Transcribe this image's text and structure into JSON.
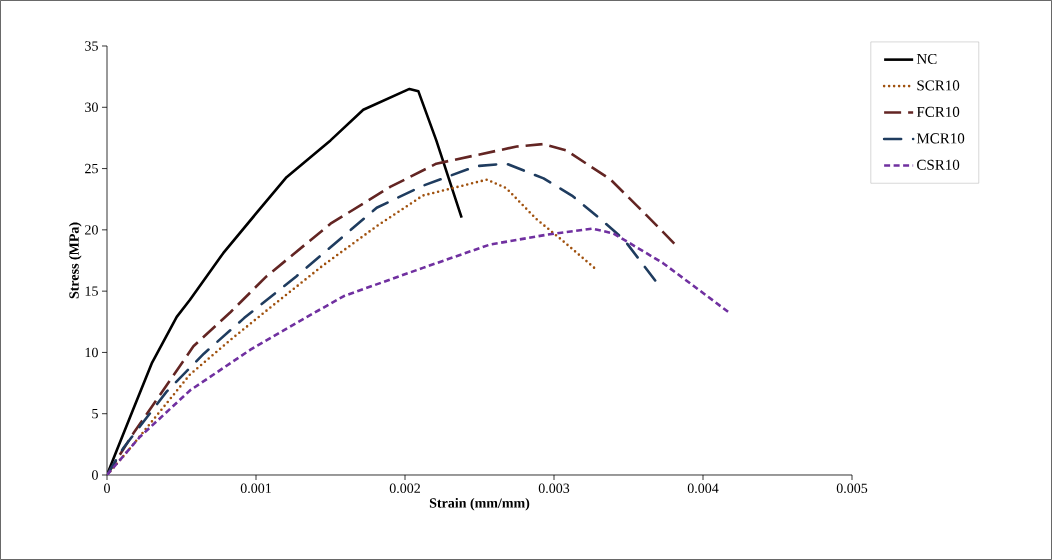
{
  "chart_data": {
    "type": "line",
    "xlabel": "Strain (mm/mm)",
    "ylabel": "Stress (MPa)",
    "xlim": [
      0,
      0.005
    ],
    "ylim": [
      0,
      35
    ],
    "xticks": [
      0,
      0.001,
      0.002,
      0.003,
      0.004,
      0.005
    ],
    "yticks": [
      0,
      5,
      10,
      15,
      20,
      25,
      30,
      35
    ],
    "grid": false,
    "legend": "right",
    "marker": "none",
    "series": [
      {
        "name": "NC",
        "color": "#000000",
        "line_style": "solid",
        "x": [
          0,
          6.5e-05,
          0.000174,
          0.0003,
          0.000468,
          0.000557,
          0.00078,
          0.001005,
          0.001205,
          0.0015,
          0.00172,
          0.00203,
          0.00209,
          0.00221,
          0.00238
        ],
        "values": [
          0,
          2.0,
          5.3,
          9.1,
          12.9,
          14.3,
          18.1,
          21.4,
          24.3,
          27.3,
          29.8,
          31.5,
          31.3,
          27.3,
          21.0
        ]
      },
      {
        "name": "SCR10",
        "color": "#a0510e",
        "line_style": "dotted",
        "x": [
          0,
          0.000143,
          0.00033,
          0.000557,
          0.000826,
          0.00112,
          0.00145,
          0.00181,
          0.00212,
          0.00255,
          0.00268,
          0.00288,
          0.00305,
          0.00328
        ],
        "values": [
          0,
          2.0,
          4.8,
          8.2,
          11.0,
          13.9,
          17.1,
          20.3,
          22.8,
          24.1,
          23.4,
          20.9,
          19.2,
          16.8
        ]
      },
      {
        "name": "FCR10",
        "color": "#632523",
        "line_style": "long dashed",
        "x": [
          0,
          0.000177,
          0.000376,
          0.00058,
          0.00083,
          0.00107,
          0.0015,
          0.0019,
          0.00221,
          0.00275,
          0.00293,
          0.00308,
          0.00338,
          0.00362,
          0.00383
        ],
        "values": [
          0,
          3.4,
          6.9,
          10.5,
          13.3,
          16.2,
          20.5,
          23.5,
          25.4,
          26.8,
          27.0,
          26.5,
          24.1,
          21.2,
          18.6
        ]
      },
      {
        "name": "MCR10",
        "color": "#1f3c5f",
        "line_style": "dash dot",
        "x": [
          0,
          0.00011,
          0.0004,
          0.00065,
          0.00092,
          0.00127,
          0.00181,
          0.00212,
          0.00248,
          0.00268,
          0.00293,
          0.00312,
          0.00331,
          0.00347,
          0.00369
        ],
        "values": [
          0,
          2.2,
          6.8,
          9.9,
          12.8,
          16.2,
          21.8,
          23.6,
          25.2,
          25.4,
          24.2,
          22.8,
          20.9,
          19.2,
          15.7
        ]
      },
      {
        "name": "CSR10",
        "color": "#7030a0",
        "line_style": "dashed",
        "x": [
          0,
          0.00022,
          0.000557,
          0.00096,
          0.00127,
          0.00159,
          0.00212,
          0.00257,
          0.00295,
          0.00326,
          0.0034,
          0.00373,
          0.00394,
          0.00417
        ],
        "values": [
          0,
          3.1,
          6.9,
          10.2,
          12.4,
          14.6,
          16.9,
          18.8,
          19.6,
          20.1,
          19.7,
          17.3,
          15.4,
          13.3
        ]
      }
    ]
  }
}
